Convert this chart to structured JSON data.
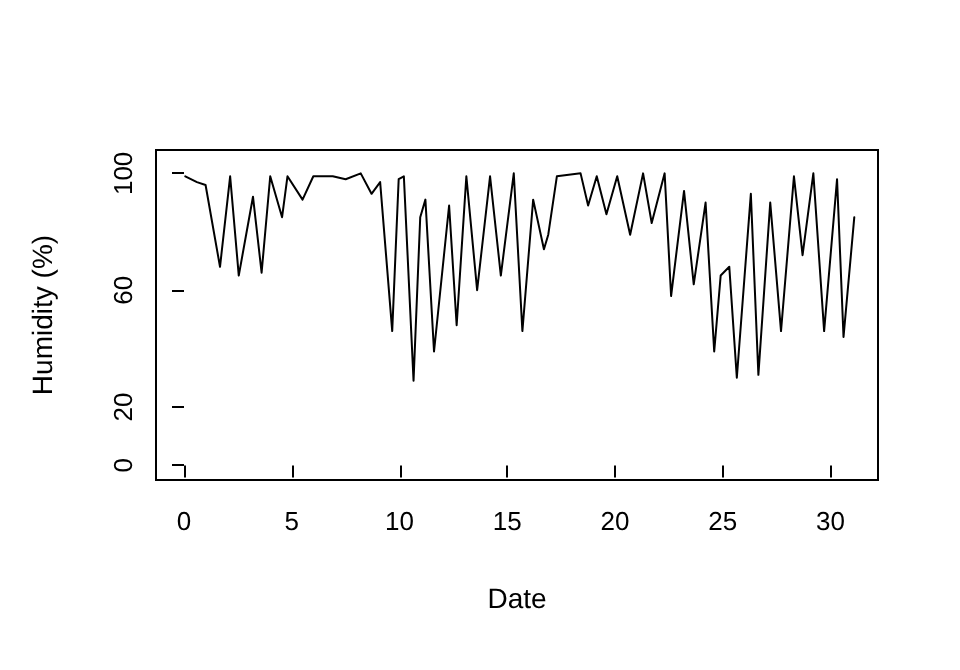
{
  "chart_data": {
    "type": "line",
    "xlabel": "Date",
    "ylabel": "Humidity (%)",
    "x": [
      0.06,
      0.6,
      1.0,
      1.67,
      2.14,
      2.54,
      3.2,
      3.6,
      4.0,
      4.55,
      4.8,
      5.5,
      6.0,
      6.9,
      7.5,
      8.2,
      8.7,
      9.1,
      9.66,
      9.96,
      10.2,
      10.65,
      10.96,
      11.2,
      11.6,
      12.3,
      12.65,
      13.1,
      13.6,
      14.2,
      14.7,
      15.3,
      15.7,
      16.2,
      16.7,
      16.9,
      17.3,
      18.4,
      18.75,
      19.15,
      19.6,
      20.1,
      20.7,
      21.3,
      21.7,
      22.3,
      22.6,
      23.2,
      23.65,
      24.2,
      24.6,
      24.9,
      25.3,
      25.65,
      26.3,
      26.65,
      27.2,
      27.7,
      28.3,
      28.7,
      29.2,
      29.7,
      30.3,
      30.6,
      31.1
    ],
    "series": [
      {
        "color": "#000000",
        "values": [
          99,
          97,
          96,
          68,
          99,
          65,
          92,
          66,
          99,
          85,
          99,
          91,
          99,
          99,
          98,
          100,
          93,
          97,
          46,
          98,
          99,
          29,
          85,
          91,
          39,
          89,
          48,
          99,
          60,
          99,
          65,
          100,
          46,
          91,
          74,
          79,
          99,
          100,
          89,
          99,
          86,
          99,
          79,
          100,
          83,
          100,
          58,
          94,
          62,
          90,
          39,
          65,
          68,
          30,
          93,
          31,
          90,
          46,
          99,
          72,
          100,
          46,
          98,
          44,
          85
        ]
      }
    ],
    "xlim": [
      -1.3,
      32.2
    ],
    "ylim": [
      -5,
      108
    ],
    "xticks": [
      0,
      5,
      10,
      15,
      20,
      25,
      30
    ],
    "yticks": [
      0,
      20,
      60,
      100
    ],
    "grid": false,
    "marker": "none",
    "line_style": "solid"
  }
}
